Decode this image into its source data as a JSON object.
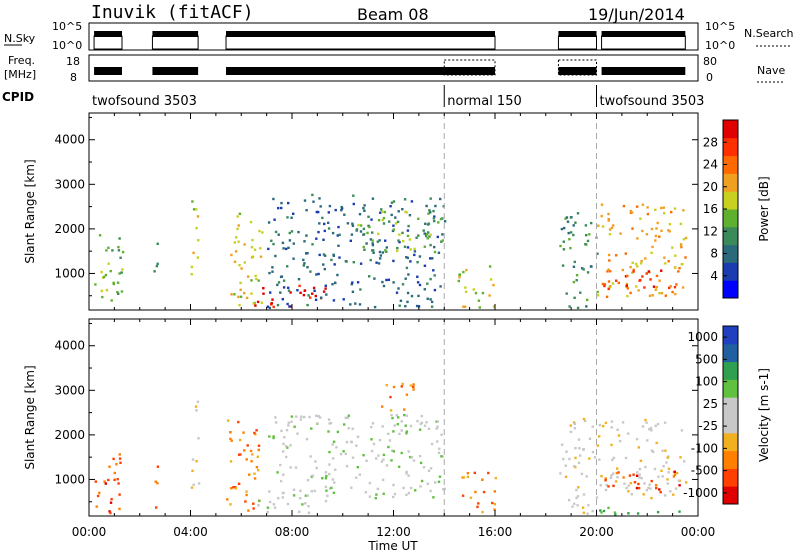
{
  "header": {
    "station": "Inuvik (fitACF)",
    "beam": "Beam 08",
    "date": "19/Jun/2014"
  },
  "status_panels": {
    "nsky_label": "N.Sky",
    "nsky_ticks": [
      "10^5",
      "10^0"
    ],
    "nsearch_label": "N.Search",
    "freq_label_1": "Freq.",
    "freq_label_2": "[MHz]",
    "freq_ticks": [
      "18",
      "8"
    ],
    "nave_ticks": [
      "80",
      "0"
    ],
    "nave_label": "Nave",
    "cpid_label": "CPID",
    "cpid_segments": [
      {
        "name": "twofsound 3503",
        "start_hour": 0
      },
      {
        "name": "normal 150",
        "start_hour": 14.0
      },
      {
        "name": "twofsound 3503",
        "start_hour": 20.0
      }
    ]
  },
  "chart_data": [
    {
      "type": "heatmap",
      "title": "",
      "xlabel": "Time UT",
      "ylabel": "Slant Range [km]",
      "x_ticks": [
        "00:00",
        "04:00",
        "08:00",
        "12:00",
        "16:00",
        "20:00",
        "00:00"
      ],
      "xlim_hours": [
        0,
        24
      ],
      "y_ticks": [
        1000,
        2000,
        3000,
        4000
      ],
      "ylim": [
        180,
        4600
      ],
      "colorbar": {
        "label": "Power [dB]",
        "ticks": [
          "4",
          "8",
          "12",
          "16",
          "20",
          "24",
          "28"
        ],
        "range": [
          0,
          30
        ],
        "colors": [
          "#0000ff",
          "#1a3cb0",
          "#2b6a7a",
          "#3a8a5a",
          "#60b030",
          "#c8d020",
          "#f0a020",
          "#ff6a00",
          "#ff3000",
          "#e00000"
        ]
      },
      "scatter_regions": [
        {
          "t0": 0.2,
          "t1": 1.3,
          "r0": 250,
          "r1": 2100,
          "level": 4
        },
        {
          "t0": 2.5,
          "t1": 2.7,
          "r0": 250,
          "r1": 1700,
          "level": 3
        },
        {
          "t0": 4.0,
          "t1": 4.3,
          "r0": 400,
          "r1": 2800,
          "level": 5
        },
        {
          "t0": 5.4,
          "t1": 6.8,
          "r0": 300,
          "r1": 2400,
          "level": 5
        },
        {
          "t0": 6.5,
          "t1": 9.3,
          "r0": 250,
          "r1": 800,
          "level": 9
        },
        {
          "t0": 7.0,
          "t1": 14.0,
          "r0": 250,
          "r1": 2800,
          "level": 2
        },
        {
          "t0": 10.5,
          "t1": 14.0,
          "r0": 1500,
          "r1": 2500,
          "level": 4
        },
        {
          "t0": 14.5,
          "t1": 16.0,
          "r0": 250,
          "r1": 1200,
          "level": 5
        },
        {
          "t0": 18.5,
          "t1": 20.0,
          "r0": 250,
          "r1": 2400,
          "level": 3
        },
        {
          "t0": 20.0,
          "t1": 23.5,
          "r0": 500,
          "r1": 2600,
          "level": 6
        },
        {
          "t0": 20.2,
          "t1": 23.4,
          "r0": 600,
          "r1": 1100,
          "level": 8
        }
      ]
    },
    {
      "type": "heatmap",
      "title": "",
      "xlabel": "Time UT",
      "ylabel": "Slant Range [km]",
      "x_ticks": [
        "00:00",
        "04:00",
        "08:00",
        "12:00",
        "16:00",
        "20:00",
        "00:00"
      ],
      "xlim_hours": [
        0,
        24
      ],
      "y_ticks": [
        1000,
        2000,
        3000,
        4000
      ],
      "ylim": [
        180,
        4600
      ],
      "colorbar": {
        "label": "Velocity [m s-1]",
        "ticks": [
          "1000",
          "500",
          "100",
          "25",
          "-25",
          "-100",
          "-500",
          "-1000"
        ],
        "range": [
          -1000,
          1000
        ],
        "colors": [
          "#e00000",
          "#ff4000",
          "#ff8000",
          "#f0b020",
          "#c8c8c8",
          "#c8c8c8",
          "#60c040",
          "#30a050",
          "#2060a0",
          "#2040c0"
        ]
      },
      "scatter_regions": [
        {
          "t0": 0.2,
          "t1": 1.3,
          "r0": 250,
          "r1": 1700,
          "level": 1
        },
        {
          "t0": 2.5,
          "t1": 2.7,
          "r0": 250,
          "r1": 1700,
          "level": 2
        },
        {
          "t0": 4.0,
          "t1": 4.3,
          "r0": 400,
          "r1": 2800,
          "level": 4
        },
        {
          "t0": 5.4,
          "t1": 6.8,
          "r0": 300,
          "r1": 2400,
          "level": 2
        },
        {
          "t0": 6.5,
          "t1": 9.3,
          "r0": 250,
          "r1": 800,
          "level": 5
        },
        {
          "t0": 7.0,
          "t1": 14.0,
          "r0": 600,
          "r1": 2500,
          "level": 5
        },
        {
          "t0": 11.5,
          "t1": 12.8,
          "r0": 2500,
          "r1": 3200,
          "level": 2
        },
        {
          "t0": 14.5,
          "t1": 16.0,
          "r0": 250,
          "r1": 1200,
          "level": 2
        },
        {
          "t0": 18.5,
          "t1": 20.0,
          "r0": 250,
          "r1": 2400,
          "level": 4
        },
        {
          "t0": 20.0,
          "t1": 23.5,
          "r0": 600,
          "r1": 2400,
          "level": 4
        },
        {
          "t0": 20.2,
          "t1": 23.4,
          "r0": 700,
          "r1": 1200,
          "level": 1
        },
        {
          "t0": 20.0,
          "t1": 23.5,
          "r0": 200,
          "r1": 400,
          "level": 6
        }
      ]
    }
  ]
}
